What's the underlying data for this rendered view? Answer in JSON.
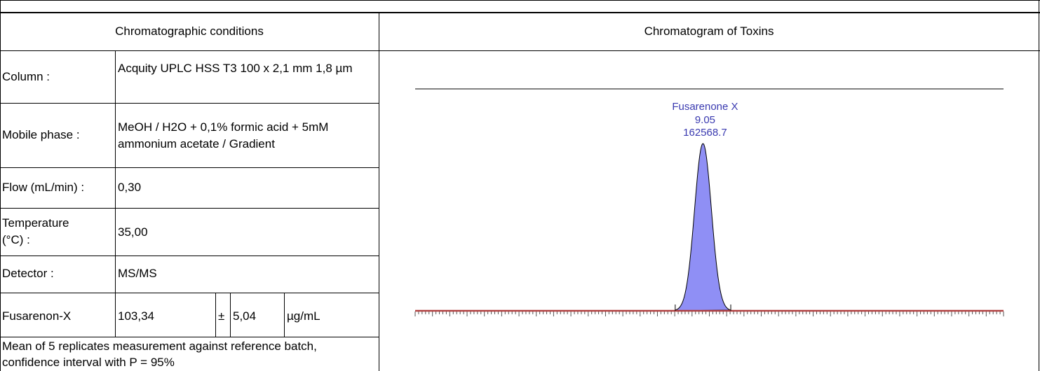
{
  "headers": {
    "left": "Chromatographic conditions",
    "right": "Chromatogram of Toxins"
  },
  "conditions": [
    {
      "label": "Column :",
      "value": "Acquity UPLC HSS T3 100 x 2,1 mm 1,8 µm"
    },
    {
      "label": "Mobile phase :",
      "value": "MeOH / H2O + 0,1% formic acid + 5mM ammonium acetate / Gradient"
    },
    {
      "label": "Flow (mL/min) :",
      "value": "0,30"
    },
    {
      "label": "Temperature (°C) :",
      "value": "35,00"
    },
    {
      "label": "Detector :",
      "value": "MS/MS"
    }
  ],
  "result": {
    "label": "Fusarenon-X",
    "value": "103,34",
    "pm": "±",
    "uncertainty": "5,04",
    "unit": "µg/mL"
  },
  "footnote": "Mean of 5 replicates measurement against reference batch, confidence interval with P = 95%",
  "chart_data": {
    "type": "line",
    "title": "",
    "peak": {
      "name": "Fusarenone X",
      "retention_time": "9.05",
      "area": "162568.7",
      "rt": 9.05
    },
    "x_range": [
      0,
      18.5
    ],
    "grid": false,
    "colors": {
      "fill": "#8f8ff5",
      "baseline": "#b04040",
      "label": "#3a3ab0",
      "top_line": "#808080"
    }
  }
}
